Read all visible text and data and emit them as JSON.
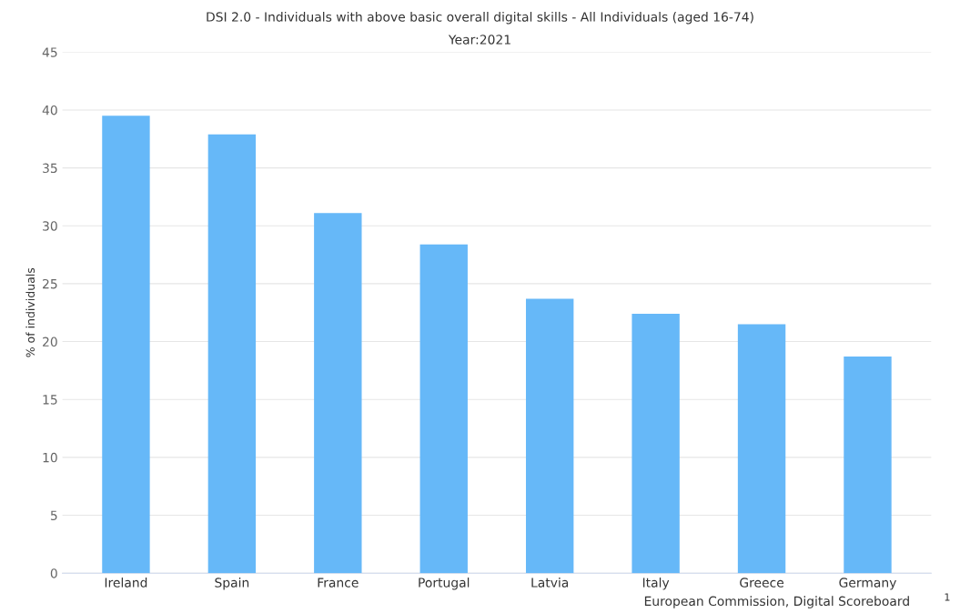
{
  "chart_data": {
    "type": "bar",
    "title": "DSI 2.0 - Individuals with above basic overall digital skills - All Individuals (aged 16-74)",
    "subtitle": "Year:2021",
    "ylabel": "% of individuals",
    "categories": [
      "Ireland",
      "Spain",
      "France",
      "Portugal",
      "Latvia",
      "Italy",
      "Greece",
      "Germany"
    ],
    "values": [
      39.5,
      37.9,
      31.1,
      28.4,
      23.7,
      22.4,
      21.5,
      18.7
    ],
    "color": "#66b8f8",
    "ylim": [
      0,
      45
    ],
    "yticks": [
      0,
      5,
      10,
      15,
      20,
      25,
      30,
      35,
      40,
      45
    ],
    "grid": "y",
    "legend": false,
    "annotations": [
      "European Commission, Digital Scoreboard",
      "1"
    ]
  }
}
